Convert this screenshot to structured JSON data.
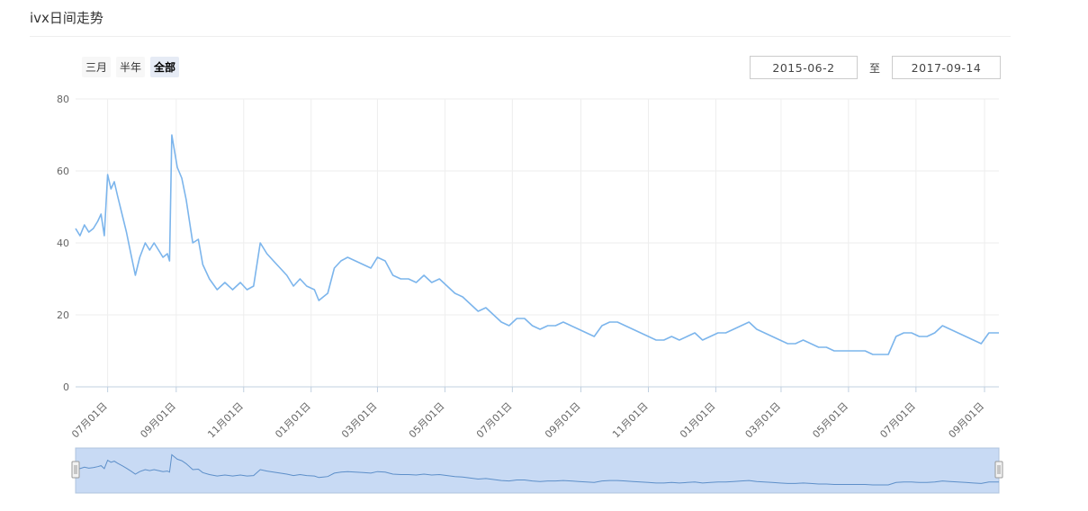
{
  "title": "ivx日间走势",
  "range_selector": {
    "buttons": [
      "三月",
      "半年",
      "全部"
    ],
    "active": "全部",
    "from": "2015-06-2",
    "separator": "至",
    "to": "2017-09-14"
  },
  "colors": {
    "line": "#7cb5ec",
    "navigator_fill": "#c8daf4",
    "grid": "#eeeeee"
  },
  "chart_data": {
    "type": "line",
    "title": "ivx日间走势",
    "xlabel": "",
    "ylabel": "",
    "ylim": [
      0,
      80
    ],
    "y_ticks": [
      0,
      20,
      40,
      60,
      80
    ],
    "x_ticks": [
      "07月01日",
      "09月01日",
      "11月01日",
      "01月01日",
      "03月01日",
      "05月01日",
      "07月01日",
      "09月01日",
      "11月01日",
      "01月01日",
      "03月01日",
      "05月01日",
      "07月01日",
      "09月01日"
    ],
    "x_range": [
      "2015-06-02",
      "2017-09-14"
    ],
    "grid": true,
    "legend": false,
    "series": [
      {
        "x": [
          "2015-06-02",
          "2015-06-06",
          "2015-06-10",
          "2015-06-14",
          "2015-06-18",
          "2015-06-22",
          "2015-06-25",
          "2015-06-28",
          "2015-07-01",
          "2015-07-04",
          "2015-07-07",
          "2015-07-10",
          "2015-07-14",
          "2015-07-18",
          "2015-07-22",
          "2015-07-26",
          "2015-07-30",
          "2015-08-04",
          "2015-08-08",
          "2015-08-12",
          "2015-08-16",
          "2015-08-20",
          "2015-08-24",
          "2015-08-26",
          "2015-08-28",
          "2015-09-02",
          "2015-09-06",
          "2015-09-10",
          "2015-09-16",
          "2015-09-21",
          "2015-09-25",
          "2015-10-01",
          "2015-10-08",
          "2015-10-15",
          "2015-10-22",
          "2015-10-29",
          "2015-11-04",
          "2015-11-10",
          "2015-11-16",
          "2015-11-22",
          "2015-11-28",
          "2015-12-04",
          "2015-12-10",
          "2015-12-16",
          "2015-12-22",
          "2015-12-28",
          "2016-01-04",
          "2016-01-08",
          "2016-01-12",
          "2016-01-16",
          "2016-01-22",
          "2016-01-28",
          "2016-02-03",
          "2016-02-10",
          "2016-02-17",
          "2016-02-24",
          "2016-03-01",
          "2016-03-08",
          "2016-03-15",
          "2016-03-22",
          "2016-03-29",
          "2016-04-05",
          "2016-04-12",
          "2016-04-19",
          "2016-04-26",
          "2016-05-03",
          "2016-05-10",
          "2016-05-17",
          "2016-05-24",
          "2016-05-31",
          "2016-06-07",
          "2016-06-14",
          "2016-06-21",
          "2016-06-28",
          "2016-07-05",
          "2016-07-12",
          "2016-07-19",
          "2016-07-26",
          "2016-08-02",
          "2016-08-09",
          "2016-08-16",
          "2016-08-23",
          "2016-08-30",
          "2016-09-06",
          "2016-09-13",
          "2016-09-20",
          "2016-09-27",
          "2016-10-04",
          "2016-10-11",
          "2016-10-18",
          "2016-10-25",
          "2016-11-01",
          "2016-11-08",
          "2016-11-15",
          "2016-11-22",
          "2016-11-29",
          "2016-12-06",
          "2016-12-13",
          "2016-12-20",
          "2016-12-27",
          "2017-01-03",
          "2017-01-10",
          "2017-01-17",
          "2017-01-24",
          "2017-01-31",
          "2017-02-07",
          "2017-02-14",
          "2017-02-21",
          "2017-02-28",
          "2017-03-07",
          "2017-03-14",
          "2017-03-21",
          "2017-03-28",
          "2017-04-04",
          "2017-04-11",
          "2017-04-18",
          "2017-04-25",
          "2017-05-02",
          "2017-05-09",
          "2017-05-16",
          "2017-05-23",
          "2017-05-30",
          "2017-06-06",
          "2017-06-13",
          "2017-06-20",
          "2017-06-27",
          "2017-07-04",
          "2017-07-11",
          "2017-07-18",
          "2017-07-25",
          "2017-08-01",
          "2017-08-08",
          "2017-08-15",
          "2017-08-22",
          "2017-08-29",
          "2017-09-05",
          "2017-09-14"
        ],
        "values": [
          44,
          42,
          45,
          43,
          44,
          46,
          48,
          42,
          59,
          55,
          57,
          53,
          48,
          43,
          37,
          31,
          36,
          40,
          38,
          40,
          38,
          36,
          37,
          35,
          70,
          61,
          58,
          52,
          40,
          41,
          34,
          30,
          27,
          29,
          27,
          29,
          27,
          28,
          40,
          37,
          35,
          33,
          31,
          28,
          30,
          28,
          27,
          24,
          25,
          26,
          33,
          35,
          36,
          35,
          34,
          33,
          36,
          35,
          31,
          30,
          30,
          29,
          31,
          29,
          30,
          28,
          26,
          25,
          23,
          21,
          22,
          20,
          18,
          17,
          19,
          19,
          17,
          16,
          17,
          17,
          18,
          17,
          16,
          15,
          14,
          17,
          18,
          18,
          17,
          16,
          15,
          14,
          13,
          13,
          14,
          13,
          14,
          15,
          13,
          14,
          15,
          15,
          16,
          17,
          18,
          16,
          15,
          14,
          13,
          12,
          12,
          13,
          12,
          11,
          11,
          10,
          10,
          10,
          10,
          10,
          9,
          9,
          9,
          14,
          15,
          15,
          14,
          14,
          15,
          17,
          16,
          15,
          14,
          13,
          12,
          15,
          15
        ]
      }
    ]
  }
}
